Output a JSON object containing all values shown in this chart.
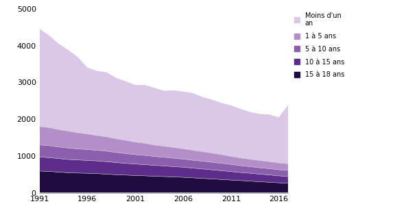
{
  "years": [
    1991,
    1992,
    1993,
    1994,
    1995,
    1996,
    1997,
    1998,
    1999,
    2000,
    2001,
    2002,
    2003,
    2004,
    2005,
    2006,
    2007,
    2008,
    2009,
    2010,
    2011,
    2012,
    2013,
    2014,
    2015,
    2016,
    2017
  ],
  "moins_un_an": [
    2650,
    2500,
    2330,
    2200,
    2050,
    1800,
    1750,
    1750,
    1650,
    1600,
    1550,
    1580,
    1550,
    1500,
    1550,
    1550,
    1550,
    1480,
    1450,
    1400,
    1380,
    1330,
    1280,
    1260,
    1280,
    1230,
    1600
  ],
  "un_a_5_ans": [
    500,
    490,
    470,
    460,
    440,
    420,
    400,
    390,
    370,
    360,
    340,
    330,
    310,
    300,
    290,
    280,
    270,
    260,
    250,
    235,
    220,
    210,
    200,
    195,
    190,
    185,
    180
  ],
  "cinq_a_10_ans": [
    330,
    325,
    315,
    310,
    300,
    295,
    290,
    285,
    275,
    265,
    255,
    250,
    240,
    235,
    230,
    220,
    215,
    210,
    205,
    200,
    195,
    185,
    180,
    175,
    170,
    165,
    160
  ],
  "dix_a_15_ans": [
    380,
    375,
    370,
    360,
    355,
    350,
    345,
    340,
    330,
    320,
    310,
    305,
    295,
    290,
    280,
    275,
    265,
    258,
    248,
    240,
    230,
    220,
    215,
    205,
    200,
    190,
    185
  ],
  "quinze_a_18_ans": [
    590,
    580,
    560,
    545,
    535,
    530,
    520,
    505,
    490,
    480,
    470,
    460,
    450,
    440,
    430,
    420,
    405,
    390,
    375,
    360,
    345,
    330,
    315,
    300,
    285,
    270,
    260
  ],
  "colors": {
    "moins_un_an": "#dbc8e8",
    "un_a_5_ans": "#b48ec8",
    "cinq_a_10_ans": "#8b5fad",
    "dix_a_15_ans": "#5c2d8a",
    "quinze_a_18_ans": "#1e0d3e"
  },
  "ylim": [
    0,
    5000
  ],
  "yticks": [
    0,
    1000,
    2000,
    3000,
    4000,
    5000
  ],
  "xticks": [
    1991,
    1996,
    2001,
    2006,
    2011,
    2016
  ],
  "legend_labels": [
    "Moins d'un\nan",
    "1 à 5 ans",
    "5 à 10 ans",
    "10 à 15 ans",
    "15 à 18 ans"
  ]
}
